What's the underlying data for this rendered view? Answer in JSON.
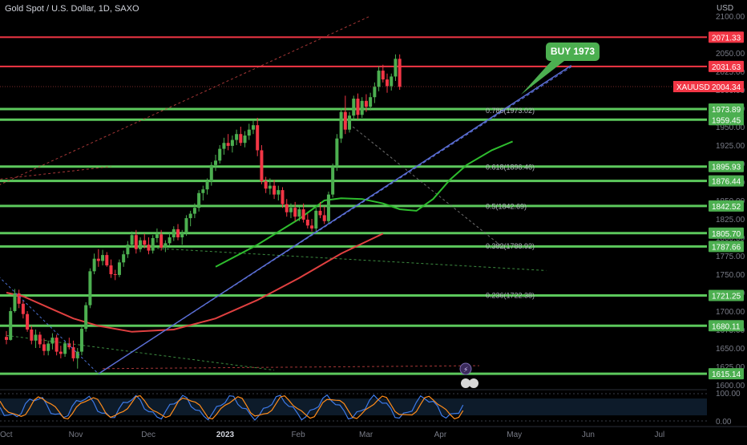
{
  "header": {
    "title": "Gold Spot / U.S. Dollar, 1D, SAXO",
    "currency": "USD"
  },
  "callout": {
    "text": "BUY 1973",
    "color": "#4caf50"
  },
  "colors": {
    "bg": "#000000",
    "up": "#4caf50",
    "down": "#f23645",
    "green_level": "#5cc85c",
    "red_level": "#f23645",
    "trendline": "#5b6fd6",
    "ma_slow": "#e04040",
    "ma_fast": "#2ebd2e"
  },
  "chart_data": {
    "type": "candlestick",
    "title": "Gold Spot / U.S. Dollar, 1D, SAXO",
    "ylabel": "USD",
    "ylim": [
      1600,
      2100
    ],
    "y_ticks": [
      1600,
      1625,
      1650,
      1675,
      1700,
      1725,
      1750,
      1775,
      1800,
      1825,
      1850,
      1875,
      1900,
      1925,
      1950,
      1975,
      2000,
      2025,
      2050,
      2100
    ],
    "x_ticks": [
      "Oct",
      "Nov",
      "Dec",
      "2023",
      "Feb",
      "Mar",
      "Apr",
      "May",
      "Jun",
      "Jul"
    ],
    "x_range": [
      "2022-10-01",
      "2023-07-31"
    ],
    "x_tick_dates": [
      "2022-10-01",
      "2022-11-01",
      "2022-12-01",
      "2023-01-01",
      "2023-02-01",
      "2023-03-01",
      "2023-04-01",
      "2023-05-01",
      "2023-06-01",
      "2023-07-01"
    ],
    "last_price": {
      "label": "XAUUSD",
      "value": "2004.34"
    },
    "green_levels": [
      "1973.89",
      "1959.45",
      "1895.93",
      "1876.44",
      "1842.52",
      "1805.70",
      "1787.66",
      "1721.25",
      "1680.11",
      "1615.14"
    ],
    "red_levels": [
      "2071.33",
      "2031.63"
    ],
    "fib_levels": [
      {
        "label": "0.786(1973.02)",
        "value": 1973.02
      },
      {
        "label": "0.618(1896.46)",
        "value": 1896.46
      },
      {
        "label": "0.5(1842.69)",
        "value": 1842.69
      },
      {
        "label": "0.382(1788.92)",
        "value": 1788.92
      },
      {
        "label": "0.236(1722.38)",
        "value": 1722.38
      }
    ],
    "ohlc": [
      [
        1665,
        1673,
        1655,
        1661
      ],
      [
        1661,
        1705,
        1660,
        1700
      ],
      [
        1700,
        1730,
        1698,
        1724
      ],
      [
        1724,
        1729,
        1704,
        1710
      ],
      [
        1710,
        1715,
        1690,
        1696
      ],
      [
        1696,
        1700,
        1672,
        1675
      ],
      [
        1675,
        1680,
        1655,
        1660
      ],
      [
        1660,
        1675,
        1650,
        1668
      ],
      [
        1668,
        1672,
        1650,
        1655
      ],
      [
        1655,
        1663,
        1640,
        1646
      ],
      [
        1646,
        1660,
        1640,
        1656
      ],
      [
        1656,
        1670,
        1648,
        1664
      ],
      [
        1664,
        1668,
        1640,
        1645
      ],
      [
        1645,
        1653,
        1636,
        1642
      ],
      [
        1642,
        1660,
        1638,
        1656
      ],
      [
        1656,
        1664,
        1648,
        1651
      ],
      [
        1651,
        1660,
        1632,
        1636
      ],
      [
        1636,
        1650,
        1622,
        1645
      ],
      [
        1645,
        1680,
        1640,
        1676
      ],
      [
        1676,
        1712,
        1672,
        1708
      ],
      [
        1708,
        1758,
        1704,
        1754
      ],
      [
        1754,
        1778,
        1750,
        1771
      ],
      [
        1771,
        1784,
        1760,
        1768
      ],
      [
        1768,
        1783,
        1762,
        1776
      ],
      [
        1776,
        1780,
        1760,
        1762
      ],
      [
        1762,
        1770,
        1745,
        1750
      ],
      [
        1750,
        1756,
        1742,
        1749
      ],
      [
        1749,
        1770,
        1746,
        1766
      ],
      [
        1766,
        1782,
        1760,
        1777
      ],
      [
        1777,
        1795,
        1772,
        1790
      ],
      [
        1790,
        1808,
        1786,
        1803
      ],
      [
        1803,
        1810,
        1778,
        1784
      ],
      [
        1784,
        1800,
        1780,
        1796
      ],
      [
        1796,
        1805,
        1785,
        1790
      ],
      [
        1790,
        1800,
        1777,
        1782
      ],
      [
        1782,
        1803,
        1778,
        1799
      ],
      [
        1799,
        1812,
        1793,
        1804
      ],
      [
        1804,
        1810,
        1782,
        1786
      ],
      [
        1786,
        1796,
        1780,
        1792
      ],
      [
        1792,
        1806,
        1788,
        1800
      ],
      [
        1800,
        1815,
        1795,
        1811
      ],
      [
        1811,
        1818,
        1796,
        1800
      ],
      [
        1800,
        1810,
        1790,
        1806
      ],
      [
        1806,
        1830,
        1802,
        1826
      ],
      [
        1826,
        1836,
        1815,
        1832
      ],
      [
        1832,
        1846,
        1826,
        1840
      ],
      [
        1840,
        1864,
        1835,
        1860
      ],
      [
        1860,
        1870,
        1850,
        1865
      ],
      [
        1865,
        1880,
        1858,
        1876
      ],
      [
        1876,
        1902,
        1870,
        1898
      ],
      [
        1898,
        1912,
        1890,
        1904
      ],
      [
        1904,
        1925,
        1900,
        1920
      ],
      [
        1920,
        1935,
        1912,
        1928
      ],
      [
        1928,
        1940,
        1918,
        1924
      ],
      [
        1924,
        1938,
        1915,
        1932
      ],
      [
        1932,
        1946,
        1925,
        1940
      ],
      [
        1940,
        1950,
        1924,
        1928
      ],
      [
        1928,
        1944,
        1922,
        1938
      ],
      [
        1938,
        1954,
        1932,
        1946
      ],
      [
        1946,
        1958,
        1940,
        1952
      ],
      [
        1952,
        1962,
        1910,
        1918
      ],
      [
        1918,
        1925,
        1872,
        1876
      ],
      [
        1876,
        1882,
        1860,
        1866
      ],
      [
        1866,
        1880,
        1858,
        1870
      ],
      [
        1870,
        1878,
        1852,
        1858
      ],
      [
        1858,
        1870,
        1850,
        1864
      ],
      [
        1864,
        1868,
        1840,
        1845
      ],
      [
        1845,
        1852,
        1828,
        1834
      ],
      [
        1834,
        1846,
        1826,
        1840
      ],
      [
        1840,
        1848,
        1822,
        1828
      ],
      [
        1828,
        1842,
        1822,
        1838
      ],
      [
        1838,
        1846,
        1820,
        1824
      ],
      [
        1824,
        1832,
        1812,
        1816
      ],
      [
        1816,
        1825,
        1808,
        1812
      ],
      [
        1812,
        1840,
        1808,
        1836
      ],
      [
        1836,
        1848,
        1826,
        1830
      ],
      [
        1830,
        1842,
        1818,
        1822
      ],
      [
        1822,
        1862,
        1818,
        1858
      ],
      [
        1858,
        1900,
        1854,
        1896
      ],
      [
        1896,
        1940,
        1890,
        1934
      ],
      [
        1934,
        1975,
        1928,
        1970
      ],
      [
        1970,
        1992,
        1940,
        1946
      ],
      [
        1946,
        1970,
        1942,
        1965
      ],
      [
        1965,
        1992,
        1960,
        1988
      ],
      [
        1988,
        1995,
        1960,
        1966
      ],
      [
        1966,
        1990,
        1962,
        1985
      ],
      [
        1985,
        1994,
        1970,
        1977
      ],
      [
        1977,
        1996,
        1972,
        1990
      ],
      [
        1990,
        2010,
        1982,
        2004
      ],
      [
        2004,
        2032,
        1998,
        2026
      ],
      [
        2026,
        2034,
        2010,
        2014
      ],
      [
        2014,
        2022,
        1996,
        2005
      ],
      [
        2005,
        2022,
        1999,
        2018
      ],
      [
        2018,
        2048,
        2012,
        2042
      ],
      [
        2042,
        2048,
        2000,
        2004
      ]
    ],
    "ma_fast_points": [
      [
        50,
        1760
      ],
      [
        60,
        1790
      ],
      [
        70,
        1825
      ],
      [
        76,
        1850
      ],
      [
        80,
        1853
      ],
      [
        85,
        1852
      ],
      [
        90,
        1846
      ],
      [
        94,
        1838
      ],
      [
        98,
        1836
      ],
      [
        102,
        1852
      ],
      [
        106,
        1878
      ],
      [
        110,
        1898
      ],
      [
        116,
        1918
      ],
      [
        121,
        1930
      ]
    ],
    "ma_slow_points": [
      [
        0,
        1725
      ],
      [
        4,
        1720
      ],
      [
        10,
        1705
      ],
      [
        16,
        1690
      ],
      [
        22,
        1680
      ],
      [
        30,
        1672
      ],
      [
        40,
        1675
      ],
      [
        50,
        1690
      ],
      [
        60,
        1715
      ],
      [
        70,
        1745
      ],
      [
        80,
        1778
      ],
      [
        90,
        1805
      ]
    ],
    "trendlines": [
      {
        "from": [
          22,
          1615
        ],
        "to": [
          135,
          2033
        ]
      },
      {
        "from": [
          22,
          1615
        ],
        "to": [
          135,
          2031
        ]
      },
      {
        "from": [
          -6,
          1770
        ],
        "to": [
          22,
          1615
        ]
      }
    ],
    "dashed_lines": [
      {
        "from": [
          -6,
          1876
        ],
        "to": [
          25,
          1896
        ],
        "color": "#d04545"
      },
      {
        "from": [
          23,
          1622
        ],
        "to": [
          113,
          1626
        ],
        "color": "#d04545"
      },
      {
        "from": [
          36,
          1785
        ],
        "to": [
          129,
          1755
        ],
        "color": "#4caf50"
      },
      {
        "from": [
          -6,
          1860
        ],
        "to": [
          87,
          2100
        ],
        "color": "#d04545"
      },
      {
        "from": [
          0,
          1667
        ],
        "to": [
          64,
          1620
        ],
        "color": "#4caf50"
      },
      {
        "from": [
          81,
          1958
        ],
        "to": [
          119,
          1785
        ],
        "color": "#888888"
      }
    ],
    "oscillator": {
      "ylim": [
        0,
        100
      ],
      "y_ticks": [
        "100.00",
        "0.00"
      ]
    }
  }
}
